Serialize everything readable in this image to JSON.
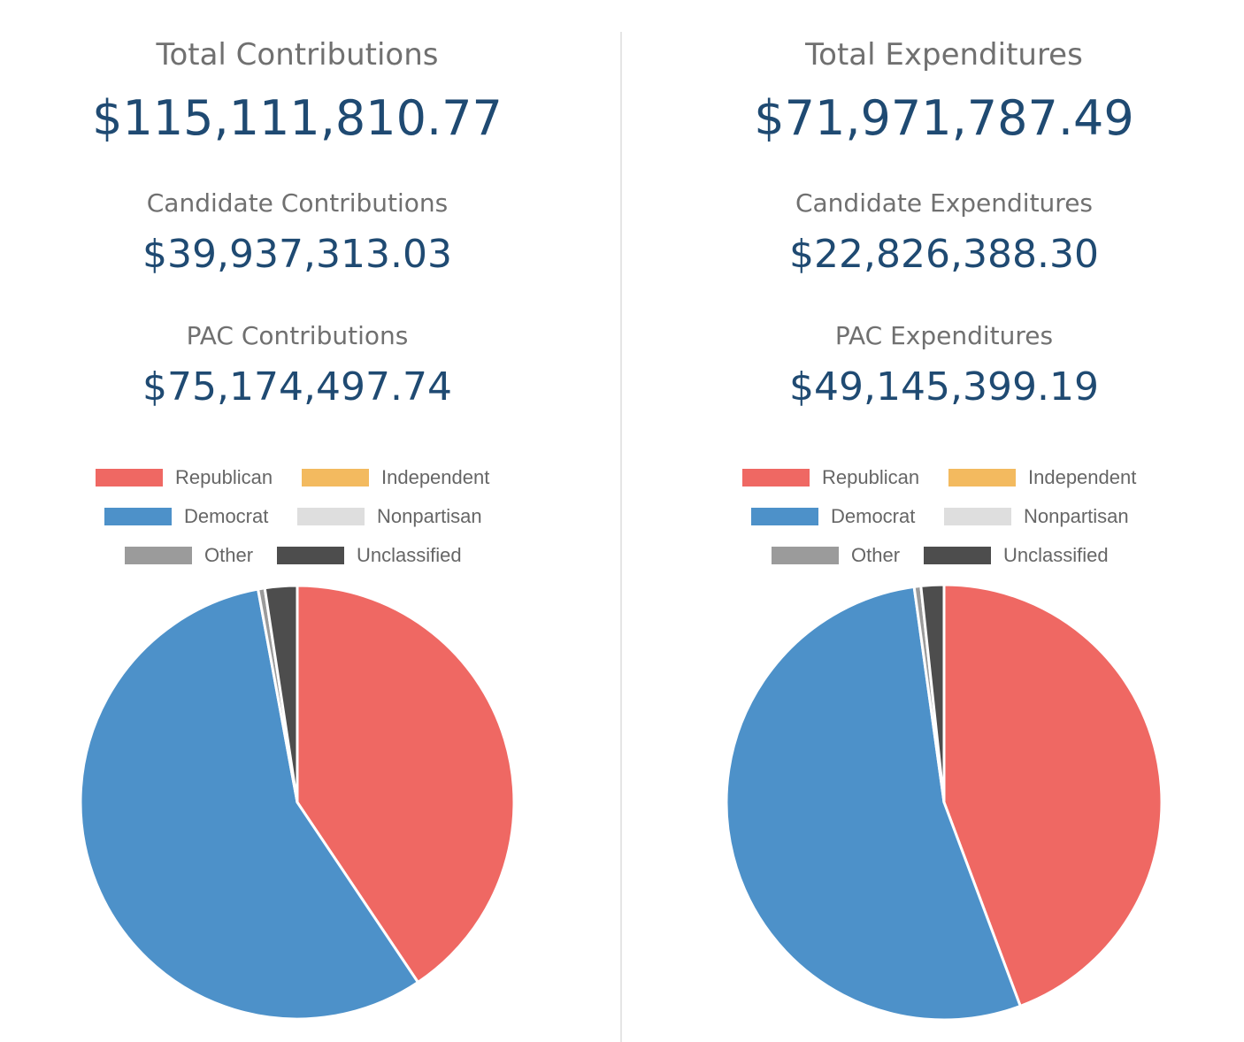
{
  "left": {
    "total_label": "Total Contributions",
    "total_value": "$115,111,810.77",
    "candidate_label": "Candidate Contributions",
    "candidate_value": "$39,937,313.03",
    "pac_label": "PAC Contributions",
    "pac_value": "$75,174,497.74"
  },
  "right": {
    "total_label": "Total Expenditures",
    "total_value": "$71,971,787.49",
    "candidate_label": "Candidate Expenditures",
    "candidate_value": "$22,826,388.30",
    "pac_label": "PAC Expenditures",
    "pac_value": "$49,145,399.19"
  },
  "legend": [
    {
      "label": "Republican",
      "color": "#ef6863"
    },
    {
      "label": "Independent",
      "color": "#f3ba5f"
    },
    {
      "label": "Democrat",
      "color": "#4d91c9"
    },
    {
      "label": "Nonpartisan",
      "color": "#dedede"
    },
    {
      "label": "Other",
      "color": "#9b9b9b"
    },
    {
      "label": "Unclassified",
      "color": "#4d4d4d"
    }
  ],
  "chart_data": [
    {
      "type": "pie",
      "title": "",
      "legend_position": "top",
      "slices": [
        {
          "label": "Republican",
          "value": 40.6,
          "color": "#ef6863"
        },
        {
          "label": "Independent",
          "value": 0.0,
          "color": "#f3ba5f"
        },
        {
          "label": "Democrat",
          "value": 56.5,
          "color": "#4d91c9"
        },
        {
          "label": "Nonpartisan",
          "value": 0.0,
          "color": "#dedede"
        },
        {
          "label": "Other",
          "value": 0.5,
          "color": "#9b9b9b"
        },
        {
          "label": "Unclassified",
          "value": 2.4,
          "color": "#4d4d4d"
        }
      ]
    },
    {
      "type": "pie",
      "title": "",
      "legend_position": "top",
      "slices": [
        {
          "label": "Republican",
          "value": 44.3,
          "color": "#ef6863"
        },
        {
          "label": "Independent",
          "value": 0.0,
          "color": "#f3ba5f"
        },
        {
          "label": "Democrat",
          "value": 53.5,
          "color": "#4d91c9"
        },
        {
          "label": "Nonpartisan",
          "value": 0.0,
          "color": "#dedede"
        },
        {
          "label": "Other",
          "value": 0.5,
          "color": "#9b9b9b"
        },
        {
          "label": "Unclassified",
          "value": 1.7,
          "color": "#4d4d4d"
        }
      ]
    }
  ]
}
